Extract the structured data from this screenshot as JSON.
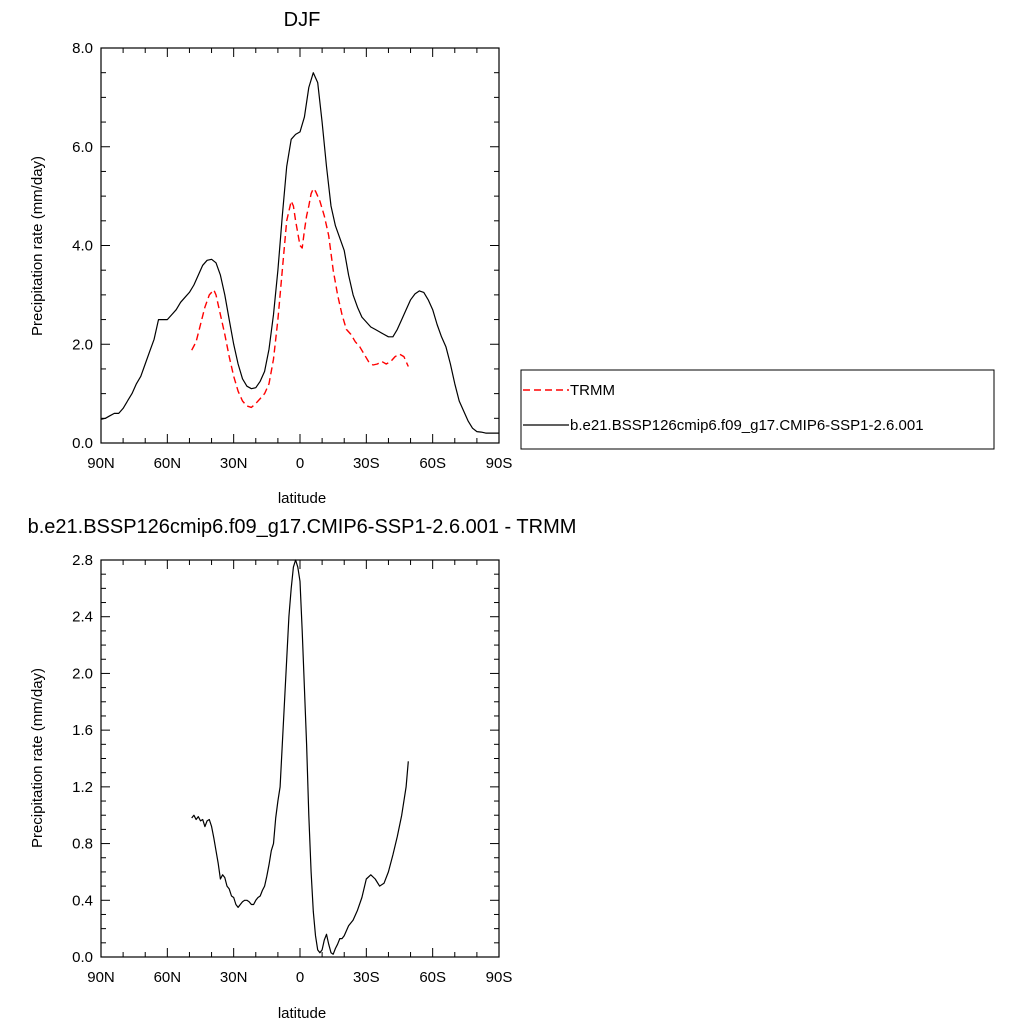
{
  "chart_data": [
    {
      "type": "line",
      "title": "DJF",
      "xlabel": "latitude",
      "ylabel": "Precipitation rate (mm/day)",
      "xlim": [
        90,
        -90
      ],
      "ylim": [
        0,
        8
      ],
      "xticks": [
        90,
        60,
        30,
        0,
        -30,
        -60,
        -90
      ],
      "xtick_labels": [
        "90N",
        "60N",
        "30N",
        "0",
        "30S",
        "60S",
        "90S"
      ],
      "yticks": [
        0,
        2,
        4,
        6,
        8
      ],
      "ytick_labels": [
        "0.0",
        "2.0",
        "4.0",
        "6.0",
        "8.0"
      ],
      "legend_position": "right",
      "series": [
        {
          "name": "TRMM",
          "color": "#ff0000",
          "dashed": true,
          "x": [
            49,
            47,
            45,
            43,
            41,
            39,
            38,
            36,
            34,
            32,
            30,
            28,
            26,
            24,
            22,
            20,
            18,
            16,
            14,
            12,
            10,
            8,
            6,
            4,
            3,
            2,
            0,
            -1,
            -2,
            -3,
            -4,
            -5,
            -6,
            -7,
            -9,
            -11,
            -13,
            -15,
            -17,
            -19,
            -21,
            -23,
            -25,
            -27,
            -29,
            -31,
            -33,
            -35,
            -37,
            -39,
            -41,
            -43,
            -45,
            -47,
            -49
          ],
          "y": [
            1.88,
            2.05,
            2.4,
            2.75,
            3.0,
            3.1,
            3.0,
            2.6,
            2.2,
            1.75,
            1.35,
            1.05,
            0.85,
            0.75,
            0.72,
            0.8,
            0.9,
            1.0,
            1.2,
            1.7,
            2.5,
            3.5,
            4.5,
            4.9,
            4.8,
            4.5,
            4.0,
            3.95,
            4.3,
            4.6,
            4.8,
            5.05,
            5.15,
            5.1,
            4.9,
            4.6,
            4.2,
            3.5,
            3.0,
            2.6,
            2.3,
            2.2,
            2.05,
            1.95,
            1.8,
            1.65,
            1.58,
            1.6,
            1.65,
            1.6,
            1.65,
            1.75,
            1.8,
            1.75,
            1.55
          ]
        },
        {
          "name": "b.e21.BSSP126cmip6.f09_g17.CMIP6-SSP1-2.6.001",
          "color": "#000000",
          "dashed": false,
          "x": [
            90,
            88,
            86,
            84,
            82,
            80,
            78,
            76,
            74,
            72,
            70,
            68,
            66,
            64,
            62,
            60,
            58,
            56,
            54,
            52,
            50,
            48,
            46,
            44,
            42,
            40,
            38,
            36,
            34,
            32,
            30,
            28,
            26,
            24,
            22,
            20,
            18,
            16,
            14,
            12,
            10,
            8,
            6,
            4,
            2,
            0,
            -2,
            -4,
            -6,
            -8,
            -10,
            -12,
            -14,
            -16,
            -18,
            -20,
            -22,
            -24,
            -26,
            -28,
            -30,
            -32,
            -34,
            -36,
            -38,
            -40,
            -42,
            -44,
            -46,
            -48,
            -50,
            -52,
            -54,
            -56,
            -58,
            -60,
            -62,
            -64,
            -66,
            -68,
            -70,
            -72,
            -74,
            -76,
            -78,
            -80,
            -82,
            -84,
            -86,
            -88,
            -90
          ],
          "y": [
            0.48,
            0.5,
            0.55,
            0.6,
            0.6,
            0.7,
            0.85,
            1.0,
            1.2,
            1.35,
            1.6,
            1.85,
            2.1,
            2.5,
            2.5,
            2.5,
            2.6,
            2.7,
            2.85,
            2.95,
            3.05,
            3.2,
            3.4,
            3.6,
            3.7,
            3.72,
            3.65,
            3.4,
            3.0,
            2.5,
            2.0,
            1.6,
            1.3,
            1.15,
            1.1,
            1.12,
            1.25,
            1.45,
            1.9,
            2.6,
            3.5,
            4.6,
            5.6,
            6.15,
            6.25,
            6.3,
            6.6,
            7.2,
            7.5,
            7.3,
            6.5,
            5.6,
            4.8,
            4.4,
            4.15,
            3.9,
            3.4,
            3.0,
            2.75,
            2.55,
            2.45,
            2.35,
            2.3,
            2.25,
            2.2,
            2.15,
            2.15,
            2.3,
            2.5,
            2.7,
            2.9,
            3.02,
            3.08,
            3.05,
            2.9,
            2.7,
            2.4,
            2.15,
            1.95,
            1.6,
            1.2,
            0.85,
            0.65,
            0.45,
            0.3,
            0.23,
            0.22,
            0.2,
            0.2,
            0.2,
            0.2
          ]
        }
      ]
    },
    {
      "type": "line",
      "title": "b.e21.BSSP126cmip6.f09_g17.CMIP6-SSP1-2.6.001 - TRMM",
      "xlabel": "latitude",
      "ylabel": "Precipitation rate (mm/day)",
      "xlim": [
        90,
        -90
      ],
      "ylim": [
        0,
        2.8
      ],
      "xticks": [
        90,
        60,
        30,
        0,
        -30,
        -60,
        -90
      ],
      "xtick_labels": [
        "90N",
        "60N",
        "30N",
        "0",
        "30S",
        "60S",
        "90S"
      ],
      "yticks": [
        0,
        0.4,
        0.8,
        1.2,
        1.6,
        2.0,
        2.4,
        2.8
      ],
      "ytick_labels": [
        "0.0",
        "0.4",
        "0.8",
        "1.2",
        "1.6",
        "2.0",
        "2.4",
        "2.8"
      ],
      "series": [
        {
          "name": "b.e21.BSSP126cmip6.f09_g17.CMIP6-SSP1-2.6.001 - TRMM",
          "color": "#000000",
          "dashed": false,
          "x": [
            49,
            48,
            47,
            46,
            45,
            44,
            43,
            42,
            41,
            40,
            39,
            38,
            37,
            36,
            35,
            34,
            33,
            32,
            31,
            30,
            29,
            28,
            27,
            26,
            25,
            24,
            23,
            22,
            21,
            20,
            19,
            18,
            17,
            16,
            15,
            14,
            13,
            12,
            11,
            10,
            9,
            8,
            7,
            6,
            5,
            4,
            3,
            2,
            1,
            0,
            -1,
            -2,
            -3,
            -4,
            -5,
            -6,
            -7,
            -8,
            -9,
            -10,
            -11,
            -12,
            -13,
            -14,
            -15,
            -16,
            -17,
            -18,
            -19,
            -20,
            -22,
            -24,
            -26,
            -28,
            -30,
            -32,
            -34,
            -36,
            -38,
            -40,
            -42,
            -44,
            -46,
            -48,
            -49
          ],
          "y": [
            0.98,
            1.0,
            0.97,
            0.99,
            0.96,
            0.97,
            0.92,
            0.96,
            0.97,
            0.92,
            0.84,
            0.75,
            0.66,
            0.55,
            0.58,
            0.56,
            0.5,
            0.48,
            0.43,
            0.42,
            0.37,
            0.35,
            0.37,
            0.39,
            0.4,
            0.4,
            0.39,
            0.37,
            0.37,
            0.4,
            0.42,
            0.43,
            0.47,
            0.5,
            0.57,
            0.65,
            0.75,
            0.8,
            0.98,
            1.1,
            1.2,
            1.5,
            1.8,
            2.1,
            2.4,
            2.6,
            2.75,
            2.8,
            2.75,
            2.65,
            2.3,
            1.9,
            1.5,
            1.0,
            0.6,
            0.32,
            0.15,
            0.05,
            0.03,
            0.05,
            0.12,
            0.16,
            0.09,
            0.03,
            0.02,
            0.06,
            0.09,
            0.13,
            0.13,
            0.15,
            0.22,
            0.26,
            0.33,
            0.42,
            0.55,
            0.58,
            0.55,
            0.5,
            0.52,
            0.6,
            0.72,
            0.85,
            1.0,
            1.2,
            1.38
          ]
        }
      ]
    }
  ]
}
